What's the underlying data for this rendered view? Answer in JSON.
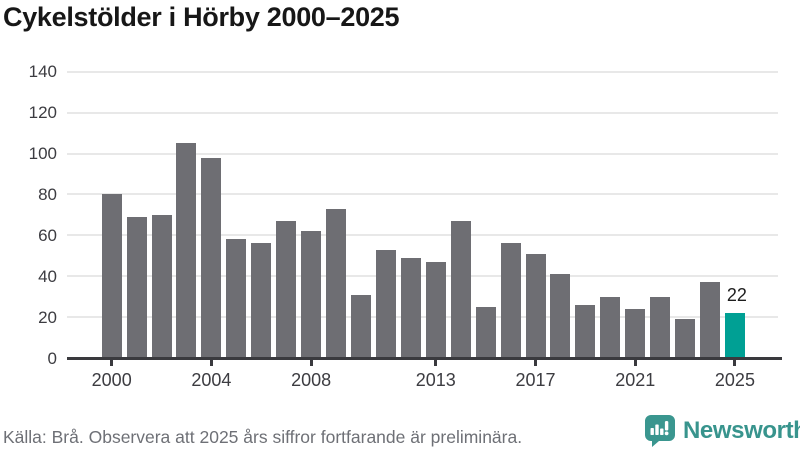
{
  "title": "Cykelstölder i Hörby 2000–2025",
  "chart_data": {
    "type": "bar",
    "title": "Cykelstölder i Hörby 2000–2025",
    "x": [
      2000,
      2001,
      2002,
      2003,
      2004,
      2005,
      2006,
      2007,
      2008,
      2009,
      2010,
      2011,
      2012,
      2013,
      2014,
      2015,
      2016,
      2017,
      2018,
      2019,
      2020,
      2021,
      2022,
      2023,
      2024,
      2025
    ],
    "values": [
      80,
      69,
      70,
      105,
      98,
      58,
      56,
      67,
      62,
      73,
      31,
      53,
      49,
      47,
      67,
      25,
      56,
      51,
      41,
      26,
      30,
      24,
      30,
      19,
      37,
      22
    ],
    "xlabel": "",
    "ylabel": "",
    "ylim": [
      0,
      140
    ],
    "yticks": [
      0,
      20,
      40,
      60,
      80,
      100,
      120,
      140
    ],
    "xticks": [
      2000,
      2004,
      2008,
      2013,
      2017,
      2021,
      2025
    ],
    "grid": "horizontal",
    "legend": "none",
    "highlight_x": 2025,
    "annotations": [
      {
        "x": 2025,
        "text": "22"
      }
    ],
    "colors": {
      "bar": "#6e6e73",
      "highlight_bar": "#00a094",
      "grid": "#e8e8e8",
      "axis": "#3a3a3e",
      "tick_label": "#3c3c41",
      "value_label": "#1d1d1d"
    }
  },
  "footer": {
    "source": "Källa: Brå. Observera att 2025 års siffror fortfarande är preliminära.",
    "brand": "Newsworthy",
    "brand_color": "#38948d"
  }
}
